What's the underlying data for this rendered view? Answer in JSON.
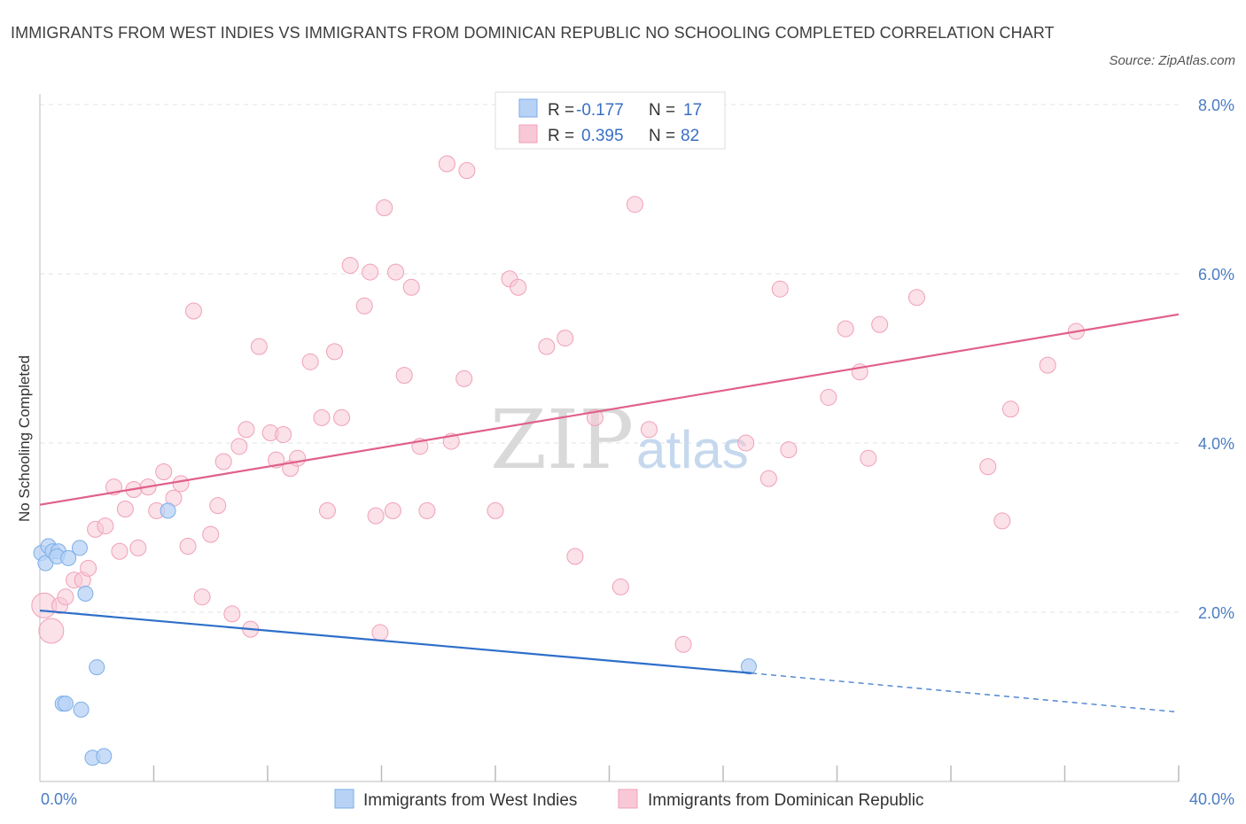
{
  "title": "IMMIGRANTS FROM WEST INDIES VS IMMIGRANTS FROM DOMINICAN REPUBLIC NO SCHOOLING COMPLETED CORRELATION CHART",
  "source": "Source: ZipAtlas.com",
  "watermark": {
    "zip": "ZIP",
    "atlas": "atlas"
  },
  "colors": {
    "blue": "#7aaee8",
    "blue_fill": "#b8d2f5",
    "blue_line": "#2e6fc9",
    "pink": "#f0a0b8",
    "pink_fill": "#f8c8d6",
    "pink_line": "#e0608a",
    "grid": "#dde3ea",
    "axis_text": "#4a7cc4"
  },
  "legend": {
    "rows": [
      {
        "r_label": "R =",
        "r_value": "-0.177",
        "n_label": "N =",
        "n_value": "17"
      },
      {
        "r_label": "R =",
        "r_value": "0.395",
        "n_label": "N =",
        "n_value": "82"
      }
    ]
  },
  "chart_data": {
    "type": "scatter",
    "title": "IMMIGRANTS FROM WEST INDIES VS IMMIGRANTS FROM DOMINICAN REPUBLIC NO SCHOOLING COMPLETED CORRELATION CHART",
    "xlabel": "",
    "ylabel": "No Schooling Completed",
    "xlim": [
      0,
      40
    ],
    "ylim": [
      0,
      8
    ],
    "x_tick_labels": [
      "0.0%",
      "40.0%"
    ],
    "y_ticks": [
      2,
      4,
      6,
      8
    ],
    "y_tick_labels": [
      "2.0%",
      "4.0%",
      "6.0%",
      "8.0%"
    ],
    "series": [
      {
        "name": "Immigrants from West Indies",
        "R": -0.177,
        "N": 17,
        "trend": {
          "x0": 0,
          "y0": 2.02,
          "x1": 25.0,
          "y1": 1.28,
          "dash_x1": 40,
          "dash_y1": 0.82
        },
        "points": [
          [
            0.05,
            2.7
          ],
          [
            0.2,
            2.58
          ],
          [
            0.3,
            2.78
          ],
          [
            0.45,
            2.72
          ],
          [
            0.65,
            2.72
          ],
          [
            0.6,
            2.66
          ],
          [
            1.0,
            2.64
          ],
          [
            1.4,
            2.76
          ],
          [
            1.6,
            2.22
          ],
          [
            4.5,
            3.2
          ],
          [
            2.0,
            1.35
          ],
          [
            0.8,
            0.92
          ],
          [
            0.9,
            0.92
          ],
          [
            1.45,
            0.85
          ],
          [
            1.85,
            0.28
          ],
          [
            2.25,
            0.3
          ],
          [
            24.9,
            1.36
          ]
        ]
      },
      {
        "name": "Immigrants from Dominican Republic",
        "R": 0.395,
        "N": 82,
        "trend": {
          "x0": 0,
          "y0": 3.27,
          "x1": 40,
          "y1": 5.52
        },
        "points": [
          [
            0.15,
            2.08
          ],
          [
            0.4,
            1.78
          ],
          [
            0.7,
            2.08
          ],
          [
            0.9,
            2.18
          ],
          [
            1.2,
            2.38
          ],
          [
            1.5,
            2.38
          ],
          [
            1.7,
            2.52
          ],
          [
            1.95,
            2.98
          ],
          [
            2.3,
            3.02
          ],
          [
            2.6,
            3.48
          ],
          [
            2.8,
            2.72
          ],
          [
            3.0,
            3.22
          ],
          [
            3.3,
            3.45
          ],
          [
            3.45,
            2.76
          ],
          [
            3.8,
            3.48
          ],
          [
            4.1,
            3.2
          ],
          [
            4.35,
            3.66
          ],
          [
            4.7,
            3.35
          ],
          [
            4.95,
            3.52
          ],
          [
            5.2,
            2.78
          ],
          [
            5.4,
            5.56
          ],
          [
            5.7,
            2.18
          ],
          [
            6.0,
            2.92
          ],
          [
            6.25,
            3.26
          ],
          [
            6.45,
            3.78
          ],
          [
            6.75,
            1.98
          ],
          [
            7.0,
            3.96
          ],
          [
            7.25,
            4.16
          ],
          [
            7.4,
            1.8
          ],
          [
            7.7,
            5.14
          ],
          [
            8.1,
            4.12
          ],
          [
            8.3,
            3.8
          ],
          [
            8.55,
            4.1
          ],
          [
            8.8,
            3.7
          ],
          [
            9.05,
            3.82
          ],
          [
            9.5,
            4.96
          ],
          [
            9.9,
            4.3
          ],
          [
            10.1,
            3.2
          ],
          [
            10.35,
            5.08
          ],
          [
            10.6,
            4.3
          ],
          [
            10.9,
            6.1
          ],
          [
            11.4,
            5.62
          ],
          [
            11.6,
            6.02
          ],
          [
            11.8,
            3.14
          ],
          [
            11.95,
            1.76
          ],
          [
            12.1,
            6.78
          ],
          [
            12.4,
            3.2
          ],
          [
            12.5,
            6.02
          ],
          [
            12.8,
            4.8
          ],
          [
            13.05,
            5.84
          ],
          [
            13.35,
            3.96
          ],
          [
            13.6,
            3.2
          ],
          [
            14.3,
            7.3
          ],
          [
            14.45,
            4.02
          ],
          [
            14.9,
            4.76
          ],
          [
            15.0,
            7.22
          ],
          [
            16.0,
            3.2
          ],
          [
            16.5,
            5.94
          ],
          [
            16.8,
            5.84
          ],
          [
            17.8,
            5.14
          ],
          [
            18.45,
            5.24
          ],
          [
            18.8,
            2.66
          ],
          [
            19.5,
            4.3
          ],
          [
            20.4,
            2.3
          ],
          [
            20.9,
            6.82
          ],
          [
            21.4,
            4.16
          ],
          [
            22.6,
            1.62
          ],
          [
            24.8,
            4.0
          ],
          [
            25.6,
            3.58
          ],
          [
            26.0,
            5.82
          ],
          [
            26.3,
            3.92
          ],
          [
            27.7,
            4.54
          ],
          [
            28.3,
            5.35
          ],
          [
            28.8,
            4.84
          ],
          [
            29.1,
            3.82
          ],
          [
            29.5,
            5.4
          ],
          [
            30.8,
            5.72
          ],
          [
            33.3,
            3.72
          ],
          [
            33.8,
            3.08
          ],
          [
            34.1,
            4.4
          ],
          [
            35.4,
            4.92
          ],
          [
            36.4,
            5.32
          ]
        ]
      }
    ]
  },
  "bottom_legend": [
    {
      "label": "Immigrants from West Indies"
    },
    {
      "label": "Immigrants from Dominican Republic"
    }
  ]
}
